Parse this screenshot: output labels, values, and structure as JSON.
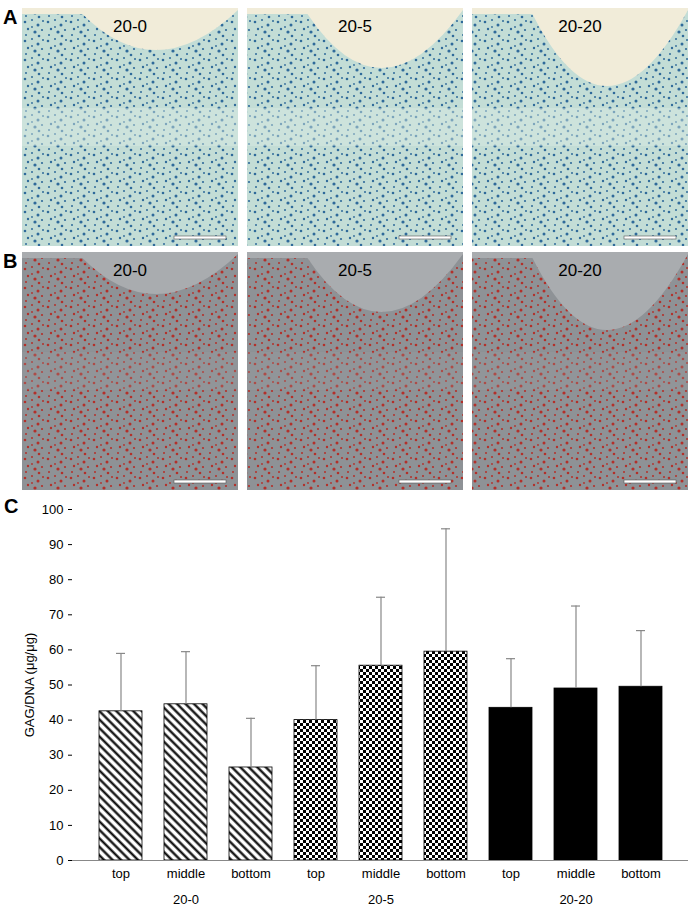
{
  "panel_labels": [
    "A",
    "B",
    "C"
  ],
  "image_titles": [
    "20-0",
    "20-5",
    "20-20"
  ],
  "chart_data": {
    "type": "bar",
    "categories": [
      "top",
      "middle",
      "bottom"
    ],
    "series": [
      {
        "name": "20-0",
        "color": "#000000",
        "values": [
          42.5,
          44.5,
          26.5
        ],
        "errors": [
          16.5,
          15,
          14
        ]
      },
      {
        "name": "20-5",
        "color": "#000000",
        "values": [
          40,
          55.5,
          59.5
        ],
        "errors": [
          15.5,
          19.5,
          35
        ]
      },
      {
        "name": "20-20",
        "color": "#000000",
        "values": [
          43.5,
          49,
          49.5
        ],
        "errors": [
          14,
          23.5,
          16
        ]
      }
    ],
    "ylabel": "GAG/DNA (μg/μg)",
    "ylim": [
      0,
      100
    ],
    "yticks": [
      0,
      10,
      20,
      30,
      40,
      50,
      60,
      70,
      80,
      90,
      100
    ]
  }
}
